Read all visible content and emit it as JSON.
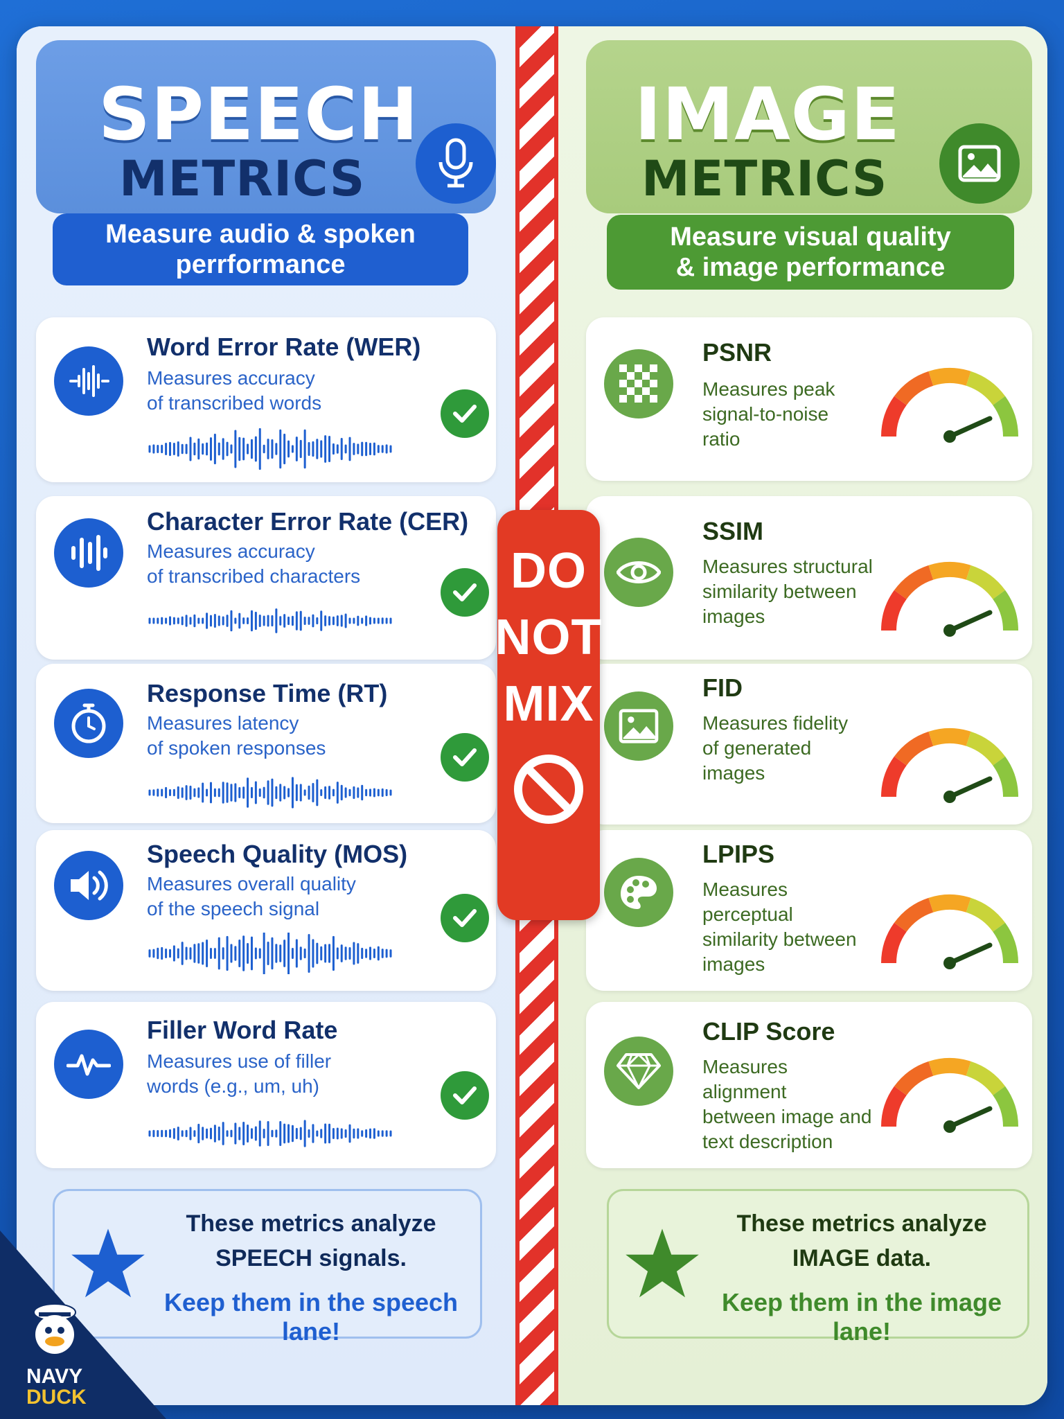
{
  "speech": {
    "title_big": "SPEECH",
    "title_small": "METRICS",
    "header_icon": "microphone-icon",
    "subtitle_line1": "Measure audio & spoken",
    "subtitle_line2": "perrformance",
    "cards": [
      {
        "icon": "waveform-icon",
        "title": "Word Error Rate (WER)",
        "desc1": "Measures accuracy",
        "desc2": "of transcribed words"
      },
      {
        "icon": "sound-bars-icon",
        "title": "Character Error Rate (CER)",
        "desc1": "Measures accuracy",
        "desc2": "of transcribed characters"
      },
      {
        "icon": "stopwatch-icon",
        "title": "Response Time (RT)",
        "desc1": "Measures latency",
        "desc2": "of spoken responses"
      },
      {
        "icon": "speaker-icon",
        "title": "Speech Quality (MOS)",
        "desc1": "Measures overall quality",
        "desc2": "of the speech signal"
      },
      {
        "icon": "pulse-icon",
        "title": "Filler Word Rate",
        "desc1": "Measures use of filler",
        "desc2": "words (e.g., um, uh)"
      }
    ],
    "footer": {
      "line1": "These metrics analyze",
      "line2": "SPEECH signals.",
      "line3": "Keep them in the speech lane!"
    }
  },
  "image": {
    "title_big": "IMAGE",
    "title_small": "METRICS",
    "header_icon": "picture-icon",
    "subtitle_line1": "Measure visual quality",
    "subtitle_line2": "& image performance",
    "cards": [
      {
        "icon": "checkerboard-icon",
        "title": "PSNR",
        "desc1": "Measures peak",
        "desc2": "signal-to-noise",
        "desc3": "ratio"
      },
      {
        "icon": "eye-icon",
        "title": "SSIM",
        "desc1": "Measures structural",
        "desc2": "similarity between",
        "desc3": "images"
      },
      {
        "icon": "picture-icon",
        "title": "FID",
        "desc1": "Measures fidelity",
        "desc2": "of generated",
        "desc3": "images"
      },
      {
        "icon": "palette-icon",
        "title": "LPIPS",
        "desc1": "Measures perceptual",
        "desc2": "similarity between",
        "desc3": "images"
      },
      {
        "icon": "diamond-icon",
        "title": "CLIP Score",
        "desc1": "Measures alignment",
        "desc2": "between image and",
        "desc3": "text description"
      }
    ],
    "footer": {
      "line1": "These metrics analyze",
      "line2": "IMAGE data.",
      "line3": "Keep them in the image lane!"
    }
  },
  "center": {
    "word1": "DO",
    "word2": "NOT",
    "word3": "MIX",
    "icon": "prohibited-icon"
  },
  "badge": {
    "line1": "NAVY",
    "line2": "DUCK"
  },
  "colors": {
    "speech_blue": "#1d5fd0",
    "image_green": "#4d9a34",
    "stop_red": "#e23a24",
    "check_green": "#2f9a3a"
  }
}
